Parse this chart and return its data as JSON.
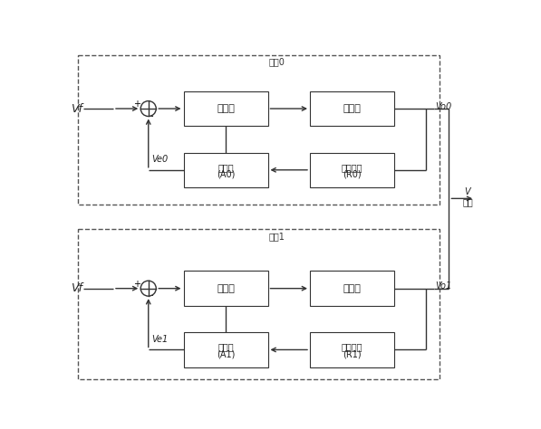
{
  "fig_width": 5.97,
  "fig_height": 4.74,
  "dpi": 100,
  "bg_color": "#ffffff",
  "box_color": "#ffffff",
  "box_edge": "#333333",
  "line_color": "#333333",
  "dash_color": "#555555",
  "master_label": "主机0",
  "slave_label": "从机1",
  "vf_label": "Vf",
  "ve0_label": "Ve0",
  "ve1_label": "Ve1",
  "vo0_label": "Vo0",
  "vo1_label": "Vo1",
  "v_label": "V",
  "output_label": "输出",
  "ctrl_label": "控制器",
  "inv_label": "逆变器",
  "corr0_line1": "校正器",
  "corr0_line2": "(A0)",
  "samp0_line1": "采样电路",
  "samp0_line2": "(R0)",
  "corr1_line1": "校正器",
  "corr1_line2": "(A1)",
  "samp1_line1": "采样电路",
  "samp1_line2": "(R1)",
  "plus_label": "+",
  "minus_label": "-"
}
